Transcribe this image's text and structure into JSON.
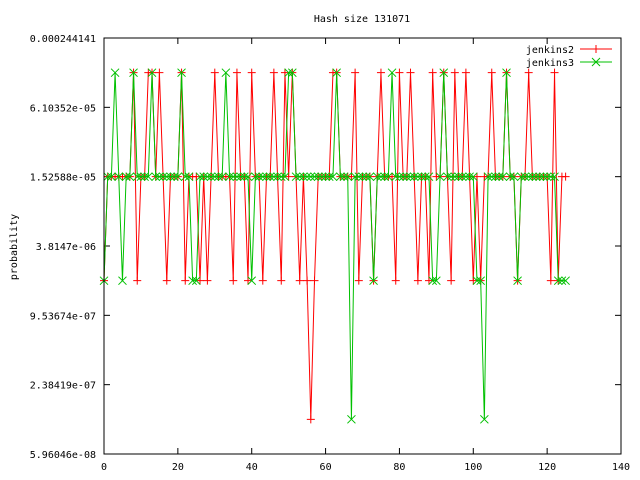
{
  "chart_data": {
    "type": "line",
    "title": "Hash size 131071",
    "xlabel": "",
    "ylabel": "probability",
    "xlim": [
      0,
      140
    ],
    "ylim": [
      5.96046e-08,
      0.000244141
    ],
    "log_y": true,
    "log_y_base": 4,
    "x_ticks": [
      0,
      20,
      40,
      60,
      80,
      100,
      120,
      140
    ],
    "y_ticks": [
      {
        "value": 0.000244141,
        "label": "0.000244141"
      },
      {
        "value": 6.10352e-05,
        "label": "6.10352e-05"
      },
      {
        "value": 1.52588e-05,
        "label": "1.52588e-05"
      },
      {
        "value": 3.8147e-06,
        "label": "3.8147e-06"
      },
      {
        "value": 9.53674e-07,
        "label": "9.53674e-07"
      },
      {
        "value": 2.38419e-07,
        "label": "2.38419e-07"
      },
      {
        "value": 5.96046e-08,
        "label": "5.96046e-08"
      }
    ],
    "legend_position": "top-right",
    "series": [
      {
        "name": "jenkins2",
        "color": "#ff0000",
        "marker": "plus",
        "x": [
          0,
          1,
          2,
          3,
          4,
          5,
          6,
          7,
          8,
          9,
          10,
          11,
          12,
          13,
          14,
          15,
          16,
          17,
          18,
          19,
          20,
          21,
          22,
          23,
          24,
          25,
          26,
          27,
          28,
          29,
          30,
          31,
          32,
          33,
          34,
          35,
          36,
          37,
          38,
          39,
          40,
          41,
          42,
          43,
          44,
          45,
          46,
          47,
          48,
          49,
          50,
          51,
          52,
          53,
          54,
          55,
          56,
          57,
          58,
          59,
          60,
          61,
          62,
          63,
          64,
          65,
          66,
          67,
          68,
          69,
          70,
          71,
          72,
          73,
          74,
          75,
          76,
          77,
          78,
          79,
          80,
          81,
          82,
          83,
          84,
          85,
          86,
          87,
          88,
          89,
          90,
          91,
          92,
          93,
          94,
          95,
          96,
          97,
          98,
          99,
          100,
          101,
          102,
          103,
          104,
          105,
          106,
          107,
          108,
          109,
          110,
          111,
          112,
          113,
          114,
          115,
          116,
          117,
          118,
          119,
          120,
          121,
          122,
          123,
          124,
          125
        ],
        "y": [
          1.90735e-06,
          1.52588e-05,
          1.52588e-05,
          1.52588e-05,
          1.52588e-05,
          1.52588e-05,
          1.52588e-05,
          1.52588e-05,
          0.00012207,
          1.90735e-06,
          1.52588e-05,
          1.52588e-05,
          0.00012207,
          0.00012207,
          1.52588e-05,
          0.00012207,
          1.52588e-05,
          1.90735e-06,
          1.52588e-05,
          1.52588e-05,
          1.52588e-05,
          0.00012207,
          1.90735e-06,
          1.52588e-05,
          1.52588e-05,
          1.52588e-05,
          1.90735e-06,
          1.52588e-05,
          1.90735e-06,
          1.52588e-05,
          0.00012207,
          1.52588e-05,
          1.52588e-05,
          1.52588e-05,
          1.52588e-05,
          1.90735e-06,
          0.00012207,
          1.52588e-05,
          1.52588e-05,
          1.90735e-06,
          0.00012207,
          1.52588e-05,
          1.52588e-05,
          1.90735e-06,
          1.52588e-05,
          1.52588e-05,
          0.00012207,
          1.52588e-05,
          1.90735e-06,
          0.00012207,
          1.52588e-05,
          0.00012207,
          1.52588e-05,
          1.90735e-06,
          1.52588e-05,
          1.90735e-06,
          1.19209e-07,
          1.90735e-06,
          1.52588e-05,
          1.52588e-05,
          1.52588e-05,
          1.52588e-05,
          0.00012207,
          0.00012207,
          1.52588e-05,
          1.52588e-05,
          1.52588e-05,
          1.52588e-05,
          0.00012207,
          1.90735e-06,
          1.52588e-05,
          1.52588e-05,
          1.52588e-05,
          1.90735e-06,
          1.52588e-05,
          0.00012207,
          1.52588e-05,
          1.52588e-05,
          1.52588e-05,
          1.90735e-06,
          0.00012207,
          1.52588e-05,
          1.52588e-05,
          0.00012207,
          1.52588e-05,
          1.90735e-06,
          1.52588e-05,
          1.52588e-05,
          1.90735e-06,
          0.00012207,
          1.52588e-05,
          1.52588e-05,
          0.00012207,
          1.52588e-05,
          1.90735e-06,
          0.00012207,
          1.52588e-05,
          1.52588e-05,
          0.00012207,
          1.52588e-05,
          1.90735e-06,
          1.52588e-05,
          1.90735e-06,
          1.52588e-05,
          1.52588e-05,
          0.00012207,
          1.52588e-05,
          1.52588e-05,
          1.52588e-05,
          0.00012207,
          1.52588e-05,
          1.52588e-05,
          1.90735e-06,
          1.52588e-05,
          1.52588e-05,
          0.00012207,
          1.52588e-05,
          1.52588e-05,
          1.52588e-05,
          1.52588e-05,
          1.52588e-05,
          1.90735e-06,
          0.00012207,
          1.90735e-06,
          1.52588e-05,
          1.52588e-05
        ]
      },
      {
        "name": "jenkins3",
        "color": "#00c000",
        "marker": "cross",
        "x": [
          0,
          1,
          2,
          3,
          4,
          5,
          6,
          7,
          8,
          9,
          10,
          11,
          12,
          13,
          14,
          15,
          16,
          17,
          18,
          19,
          20,
          21,
          22,
          23,
          24,
          25,
          26,
          27,
          28,
          29,
          30,
          31,
          32,
          33,
          34,
          35,
          36,
          37,
          38,
          39,
          40,
          41,
          42,
          43,
          44,
          45,
          46,
          47,
          48,
          49,
          50,
          51,
          52,
          53,
          54,
          55,
          56,
          57,
          58,
          59,
          60,
          61,
          62,
          63,
          64,
          65,
          66,
          67,
          68,
          69,
          70,
          71,
          72,
          73,
          74,
          75,
          76,
          77,
          78,
          79,
          80,
          81,
          82,
          83,
          84,
          85,
          86,
          87,
          88,
          89,
          90,
          91,
          92,
          93,
          94,
          95,
          96,
          97,
          98,
          99,
          100,
          101,
          102,
          103,
          104,
          105,
          106,
          107,
          108,
          109,
          110,
          111,
          112,
          113,
          114,
          115,
          116,
          117,
          118,
          119,
          120,
          121,
          122,
          123,
          124,
          125
        ],
        "y": [
          1.90735e-06,
          1.52588e-05,
          1.52588e-05,
          0.00012207,
          1.52588e-05,
          1.90735e-06,
          1.52588e-05,
          1.52588e-05,
          0.00012207,
          1.52588e-05,
          1.52588e-05,
          1.52588e-05,
          1.52588e-05,
          0.00012207,
          1.52588e-05,
          1.52588e-05,
          1.52588e-05,
          1.52588e-05,
          1.52588e-05,
          1.52588e-05,
          1.52588e-05,
          0.00012207,
          1.52588e-05,
          1.52588e-05,
          1.90735e-06,
          1.90735e-06,
          1.52588e-05,
          1.52588e-05,
          1.52588e-05,
          1.52588e-05,
          1.52588e-05,
          1.52588e-05,
          1.52588e-05,
          0.00012207,
          1.52588e-05,
          1.52588e-05,
          1.52588e-05,
          1.52588e-05,
          1.52588e-05,
          1.52588e-05,
          1.90735e-06,
          1.52588e-05,
          1.52588e-05,
          1.52588e-05,
          1.52588e-05,
          1.52588e-05,
          1.52588e-05,
          1.52588e-05,
          1.52588e-05,
          1.52588e-05,
          0.00012207,
          0.00012207,
          1.52588e-05,
          1.52588e-05,
          1.52588e-05,
          1.52588e-05,
          1.52588e-05,
          1.52588e-05,
          1.52588e-05,
          1.52588e-05,
          1.52588e-05,
          1.52588e-05,
          1.52588e-05,
          0.00012207,
          1.52588e-05,
          1.52588e-05,
          1.52588e-05,
          1.19209e-07,
          1.52588e-05,
          1.52588e-05,
          1.52588e-05,
          1.52588e-05,
          1.52588e-05,
          1.90735e-06,
          1.52588e-05,
          1.52588e-05,
          1.52588e-05,
          1.52588e-05,
          0.00012207,
          1.52588e-05,
          1.52588e-05,
          1.52588e-05,
          1.52588e-05,
          1.52588e-05,
          1.52588e-05,
          1.52588e-05,
          1.52588e-05,
          1.52588e-05,
          1.52588e-05,
          1.90735e-06,
          1.90735e-06,
          1.52588e-05,
          0.00012207,
          1.52588e-05,
          1.52588e-05,
          1.52588e-05,
          1.52588e-05,
          1.52588e-05,
          1.52588e-05,
          1.52588e-05,
          1.52588e-05,
          1.90735e-06,
          1.90735e-06,
          1.19209e-07,
          1.52588e-05,
          1.52588e-05,
          1.52588e-05,
          1.52588e-05,
          1.52588e-05,
          0.00012207,
          1.52588e-05,
          1.52588e-05,
          1.90735e-06,
          1.52588e-05,
          1.52588e-05,
          1.52588e-05,
          1.52588e-05,
          1.52588e-05,
          1.52588e-05,
          1.52588e-05,
          1.52588e-05,
          1.52588e-05,
          1.52588e-05,
          1.90735e-06,
          1.90735e-06,
          1.90735e-06
        ]
      }
    ]
  }
}
